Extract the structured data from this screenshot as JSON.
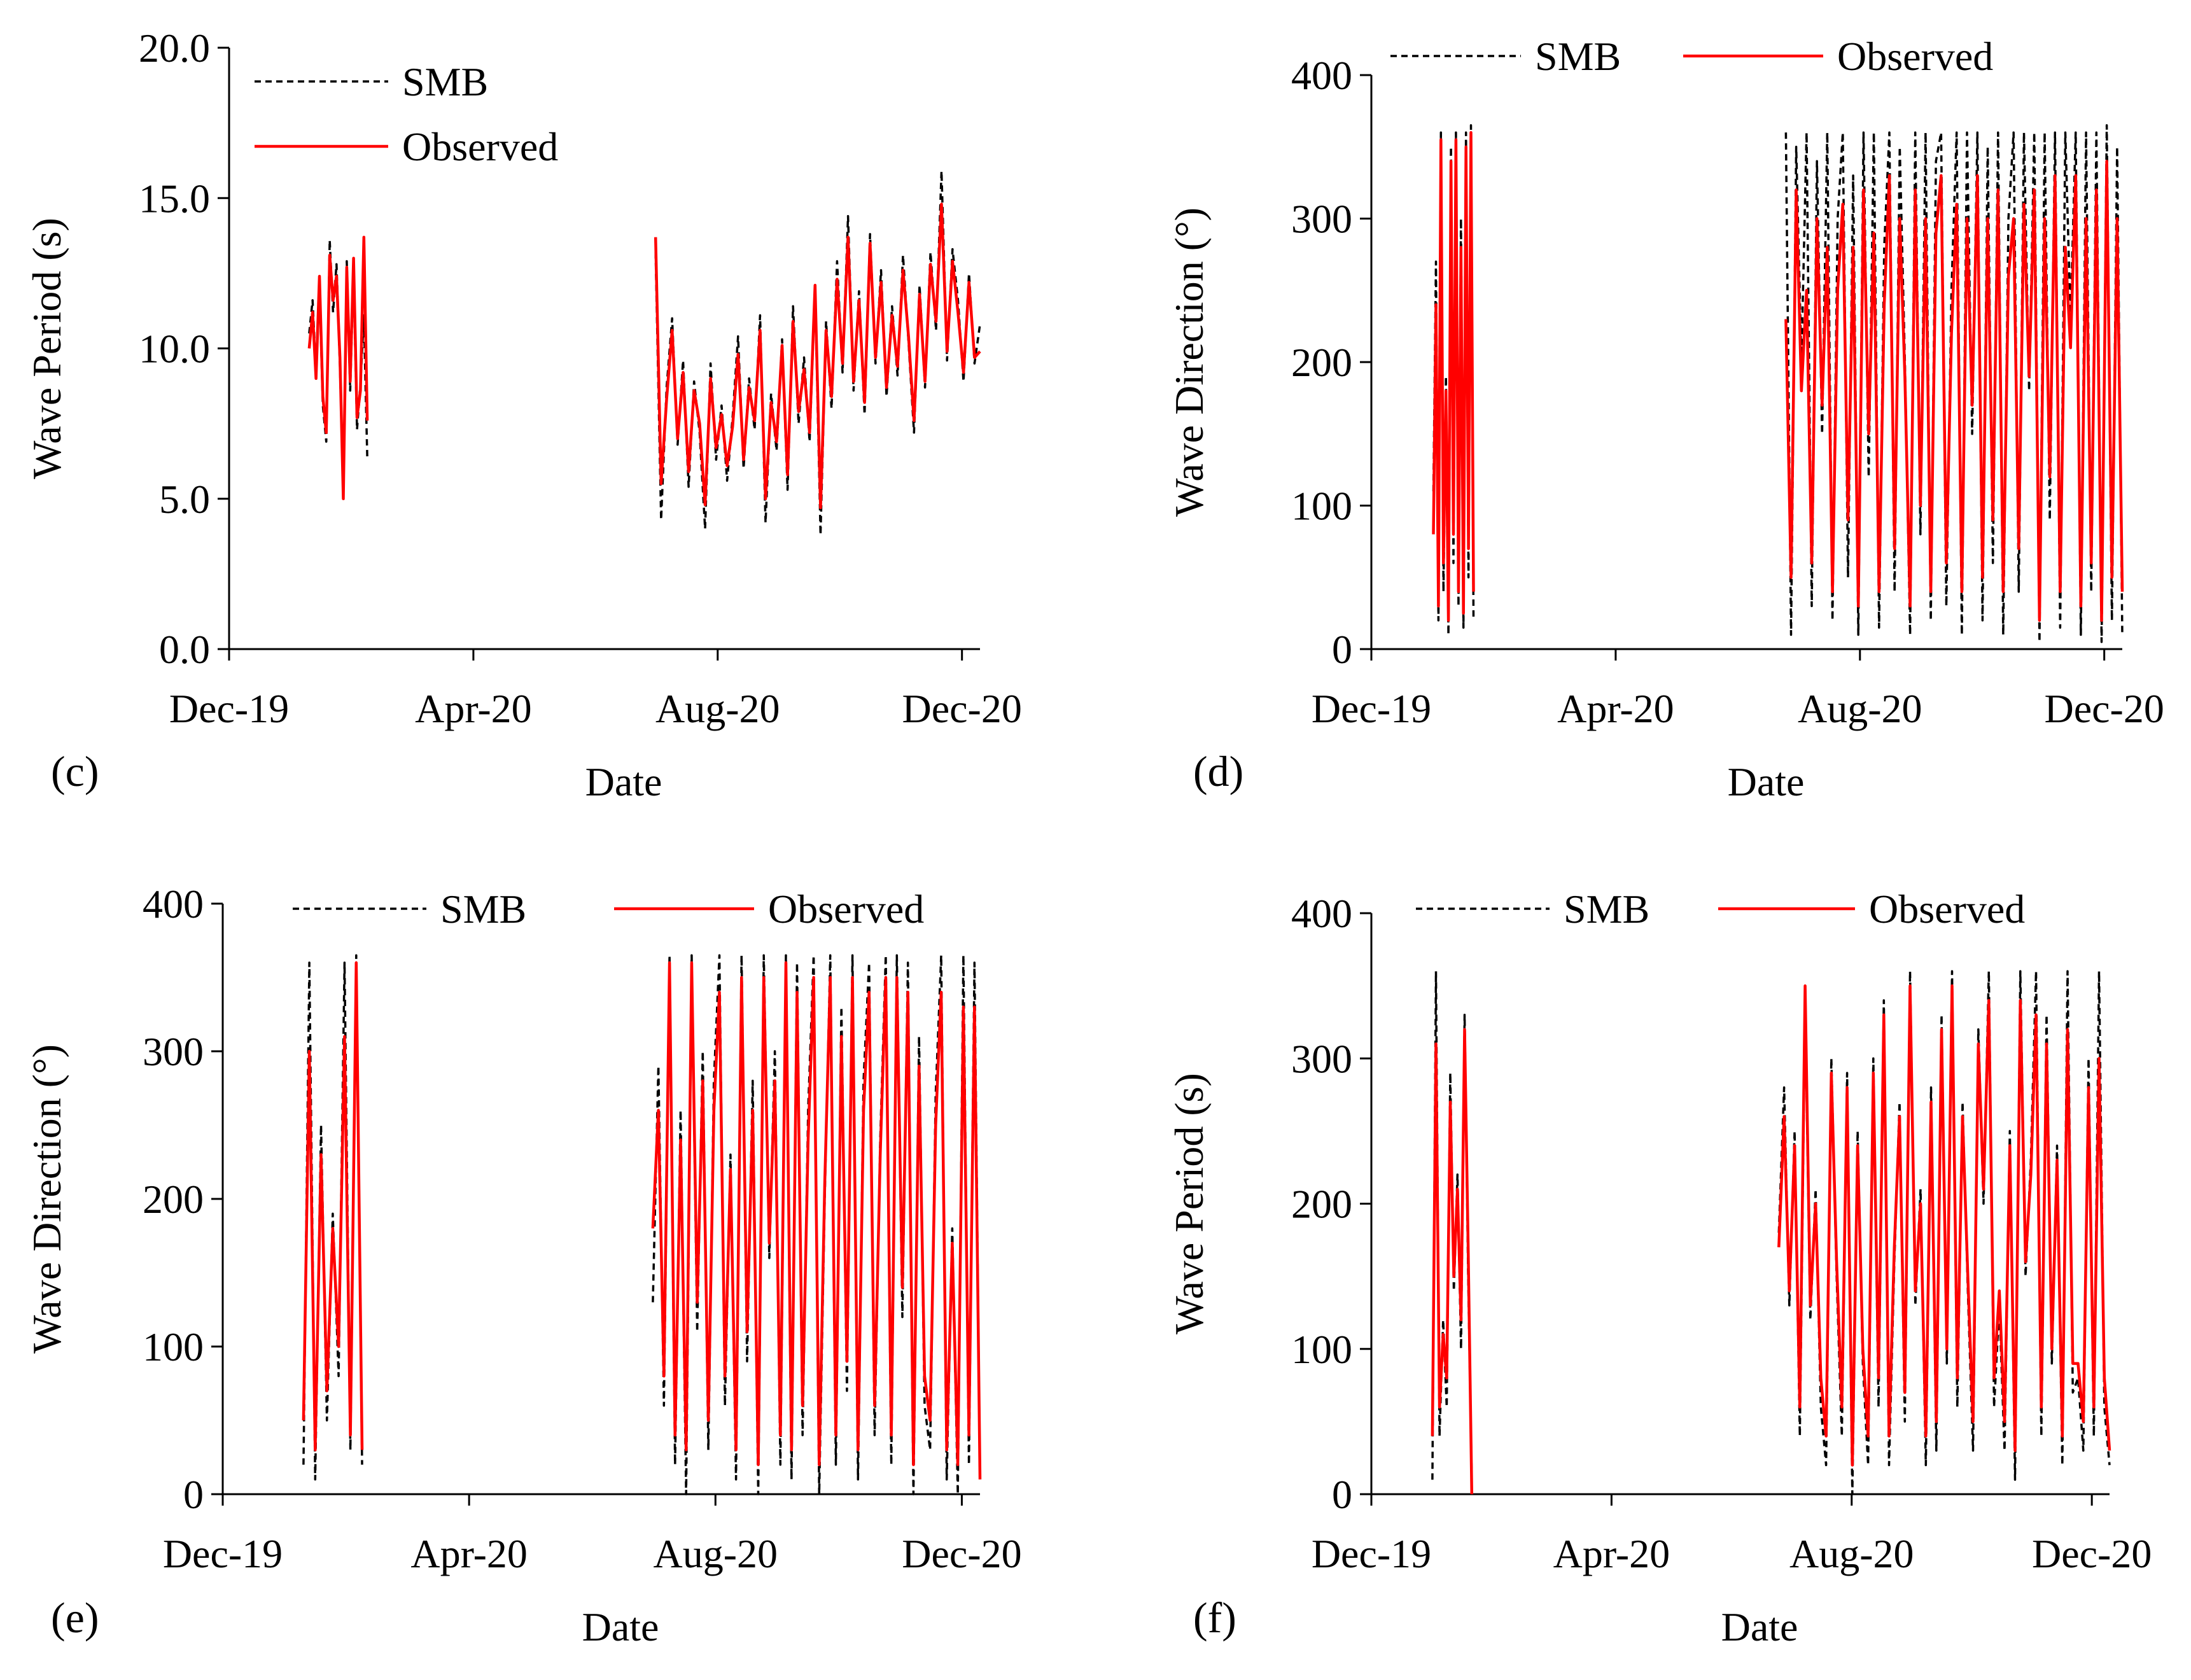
{
  "chart_data": [
    {
      "type": "line",
      "panel_label": "(c)",
      "xlabel": "Date",
      "ylabel": "Wave Period (s)",
      "x_tick_labels": [
        "Dec-19",
        "Apr-20",
        "Aug-20",
        "Dec-20"
      ],
      "xlim": [
        "2019-12-01",
        "2020-12-10"
      ],
      "ylim": [
        0,
        20
      ],
      "y_ticks": [
        "0.0",
        "5.0",
        "10.0",
        "15.0",
        "20.0"
      ],
      "y_tick_values": [
        0,
        5,
        10,
        15,
        20
      ],
      "grid": false,
      "legend_placement": "top-left",
      "series": [
        {
          "name": "SMB",
          "style": "dashed",
          "color": "#000000",
          "segments": [
            {
              "start": "2020-01-10",
              "end": "2020-02-08",
              "values": [
                10.5,
                11.6,
                9.2,
                12.1,
                8.1,
                6.9,
                13.6,
                11.2,
                12.8,
                9.4,
                5.1,
                12.9,
                8.6,
                12.6,
                7.3,
                8.8,
                11.1,
                6.4
              ]
            },
            {
              "start": "2020-07-01",
              "end": "2020-12-10",
              "values": [
                13.2,
                4.3,
                8.7,
                11.0,
                6.8,
                9.6,
                5.4,
                8.9,
                7.2,
                4.0,
                9.5,
                6.3,
                8.1,
                5.6,
                7.7,
                10.4,
                6.0,
                9.0,
                7.3,
                11.1,
                4.2,
                8.5,
                6.6,
                10.3,
                5.3,
                11.4,
                7.5,
                9.7,
                6.9,
                12.0,
                3.8,
                10.9,
                8.0,
                12.9,
                9.2,
                14.4,
                8.6,
                11.9,
                7.8,
                13.8,
                9.5,
                12.6,
                8.4,
                11.4,
                9.1,
                13.1,
                10.2,
                7.2,
                12.1,
                8.7,
                13.2,
                10.6,
                15.9,
                9.6,
                13.3,
                11.6,
                8.9,
                12.5,
                9.5,
                10.8
              ]
            }
          ]
        },
        {
          "name": "Observed",
          "style": "solid",
          "color": "#ff0000",
          "segments": [
            {
              "start": "2020-01-10",
              "end": "2020-02-08",
              "values": [
                10.0,
                11.2,
                9.0,
                12.4,
                8.4,
                7.2,
                13.1,
                11.6,
                12.4,
                9.7,
                5.0,
                12.7,
                8.9,
                13.0,
                7.7,
                8.6,
                13.7,
                7.6
              ]
            },
            {
              "start": "2020-07-01",
              "end": "2020-12-10",
              "values": [
                13.7,
                5.5,
                8.3,
                10.6,
                7.0,
                9.2,
                5.9,
                8.6,
                7.5,
                4.8,
                9.0,
                6.7,
                7.8,
                6.1,
                7.4,
                9.8,
                6.3,
                8.7,
                7.6,
                10.6,
                5.0,
                8.2,
                6.9,
                10.1,
                5.8,
                10.9,
                7.9,
                9.3,
                7.2,
                12.1,
                4.7,
                10.6,
                8.4,
                12.3,
                9.5,
                13.7,
                8.9,
                11.6,
                8.2,
                13.5,
                9.7,
                12.2,
                8.7,
                11.1,
                9.4,
                12.6,
                10.4,
                7.6,
                11.8,
                8.9,
                12.8,
                10.9,
                14.8,
                9.9,
                12.9,
                11.2,
                9.2,
                12.2,
                9.7,
                9.9
              ]
            }
          ]
        }
      ]
    },
    {
      "type": "line",
      "panel_label": "(d)",
      "xlabel": "Date",
      "ylabel": "Wave Direction (°)",
      "x_tick_labels": [
        "Dec-19",
        "Apr-20",
        "Aug-20",
        "Dec-20"
      ],
      "xlim": [
        "2019-12-01",
        "2020-12-10"
      ],
      "ylim": [
        0,
        400
      ],
      "y_ticks": [
        "0",
        "100",
        "200",
        "300",
        "400"
      ],
      "y_tick_values": [
        0,
        100,
        200,
        300,
        400
      ],
      "grid": false,
      "legend_placement": "top",
      "series": [
        {
          "name": "SMB",
          "style": "dashed",
          "color": "#000000",
          "segments": [
            {
              "start": "2020-01-01",
              "end": "2020-01-21",
              "values": [
                110,
                270,
                20,
                360,
                40,
                190,
                10,
                350,
                60,
                360,
                30,
                300,
                15,
                360,
                50,
                365,
                20
              ]
            },
            {
              "start": "2020-06-25",
              "end": "2020-12-10",
              "values": [
                360,
                10,
                350,
                200,
                360,
                30,
                340,
                150,
                360,
                20,
                300,
                360,
                50,
                330,
                10,
                360,
                120,
                360,
                15,
                280,
                360,
                40,
                350,
                200,
                10,
                360,
                80,
                360,
                20,
                340,
                360,
                30,
                250,
                360,
                10,
                360,
                150,
                360,
                20,
                350,
                60,
                360,
                10,
                300,
                360,
                40,
                360,
                180,
                360,
                5,
                360,
                90,
                360,
                15,
                360,
                230,
                360,
                10,
                360,
                40,
                360,
                5,
                365,
                20,
                350,
                10
              ]
            }
          ]
        },
        {
          "name": "Observed",
          "style": "solid",
          "color": "#ff0000",
          "segments": [
            {
              "start": "2020-01-01",
              "end": "2020-01-21",
              "values": [
                80,
                240,
                30,
                355,
                60,
                180,
                20,
                340,
                80,
                355,
                40,
                280,
                25,
                350,
                70,
                360,
                40
              ]
            },
            {
              "start": "2020-06-25",
              "end": "2020-12-10",
              "values": [
                230,
                50,
                320,
                180,
                250,
                60,
                300,
                170,
                280,
                40,
                250,
                310,
                90,
                280,
                30,
                320,
                150,
                290,
                40,
                240,
                330,
                70,
                300,
                190,
                30,
                320,
                100,
                300,
                40,
                290,
                330,
                60,
                220,
                310,
                40,
                300,
                170,
                330,
                50,
                300,
                90,
                320,
                40,
                260,
                300,
                70,
                310,
                190,
                320,
                20,
                300,
                120,
                330,
                40,
                280,
                210,
                330,
                30,
                300,
                60,
                320,
                20,
                340,
                50,
                300,
                40
              ]
            }
          ]
        }
      ]
    },
    {
      "type": "line",
      "panel_label": "(e)",
      "xlabel": "Date",
      "ylabel": "Wave Direction (°)",
      "x_tick_labels": [
        "Dec-19",
        "Apr-20",
        "Aug-20",
        "Dec-20"
      ],
      "xlim": [
        "2019-12-01",
        "2020-12-10"
      ],
      "ylim": [
        0,
        400
      ],
      "y_ticks": [
        "0",
        "100",
        "200",
        "300",
        "400"
      ],
      "y_tick_values": [
        0,
        100,
        200,
        300,
        400
      ],
      "grid": false,
      "legend_placement": "top",
      "series": [
        {
          "name": "SMB",
          "style": "dashed",
          "color": "#000000",
          "segments": [
            {
              "start": "2020-01-10",
              "end": "2020-02-08",
              "values": [
                20,
                360,
                10,
                250,
                50,
                190,
                80,
                360,
                30,
                365,
                20
              ]
            },
            {
              "start": "2020-07-01",
              "end": "2020-12-10",
              "values": [
                130,
                290,
                60,
                365,
                20,
                260,
                0,
                365,
                110,
                300,
                30,
                280,
                365,
                60,
                230,
                10,
                365,
                90,
                280,
                0,
                365,
                160,
                300,
                20,
                365,
                10,
                360,
                40,
                260,
                365,
                0,
                200,
                365,
                20,
                330,
                70,
                365,
                10,
                280,
                360,
                40,
                240,
                365,
                20,
                365,
                120,
                360,
                0,
                310,
                60,
                30,
                270,
                365,
                10,
                180,
                0,
                365,
                20,
                360,
                10
              ]
            }
          ]
        },
        {
          "name": "Observed",
          "style": "solid",
          "color": "#ff0000",
          "segments": [
            {
              "start": "2020-01-10",
              "end": "2020-02-08",
              "values": [
                50,
                300,
                30,
                230,
                70,
                180,
                100,
                310,
                40,
                360,
                30
              ]
            },
            {
              "start": "2020-07-01",
              "end": "2020-12-10",
              "values": [
                180,
                260,
                80,
                360,
                40,
                240,
                30,
                360,
                130,
                280,
                50,
                260,
                340,
                80,
                220,
                30,
                350,
                110,
                260,
                20,
                350,
                170,
                280,
                40,
                360,
                30,
                340,
                60,
                240,
                350,
                20,
                210,
                350,
                40,
                310,
                90,
                350,
                30,
                260,
                340,
                60,
                230,
                350,
                40,
                350,
                140,
                340,
                20,
                290,
                80,
                50,
                250,
                340,
                30,
                170,
                20,
                330,
                40,
                330,
                10
              ]
            }
          ]
        }
      ]
    },
    {
      "type": "line",
      "panel_label": "(f)",
      "xlabel": "Date",
      "ylabel": "Wave Period (s)",
      "x_tick_labels": [
        "Dec-19",
        "Apr-20",
        "Aug-20",
        "Dec-20"
      ],
      "xlim": [
        "2019-12-01",
        "2020-12-10"
      ],
      "ylim": [
        0,
        400
      ],
      "y_ticks": [
        "0",
        "100",
        "200",
        "300",
        "400"
      ],
      "y_tick_values": [
        0,
        100,
        200,
        300,
        400
      ],
      "grid": false,
      "legend_placement": "top",
      "series": [
        {
          "name": "SMB",
          "style": "dashed",
          "color": "#000000",
          "segments": [
            {
              "start": "2020-01-01",
              "end": "2020-01-21",
              "values": [
                10,
                360,
                40,
                120,
                60,
                290,
                140,
                220,
                100,
                330,
                150,
                10
              ]
            },
            {
              "start": "2020-06-25",
              "end": "2020-12-10",
              "values": [
                180,
                280,
                130,
                250,
                40,
                340,
                120,
                210,
                60,
                20,
                300,
                150,
                40,
                290,
                0,
                250,
                90,
                20,
                300,
                60,
                340,
                20,
                160,
                270,
                50,
                360,
                130,
                210,
                20,
                280,
                30,
                330,
                90,
                360,
                60,
                270,
                140,
                30,
                320,
                200,
                360,
                60,
                130,
                30,
                250,
                10,
                360,
                150,
                230,
                360,
                40,
                330,
                90,
                240,
                20,
                360,
                70,
                80,
                30,
                300,
                40,
                360,
                60,
                20
              ]
            }
          ]
        },
        {
          "name": "Observed",
          "style": "solid",
          "color": "#ff0000",
          "segments": [
            {
              "start": "2020-01-01",
              "end": "2020-01-21",
              "values": [
                40,
                310,
                60,
                110,
                80,
                270,
                150,
                210,
                120,
                320,
                170,
                0
              ]
            },
            {
              "start": "2020-06-25",
              "end": "2020-12-10",
              "values": [
                170,
                260,
                140,
                240,
                60,
                350,
                130,
                200,
                80,
                40,
                290,
                160,
                60,
                280,
                20,
                240,
                100,
                40,
                290,
                80,
                330,
                40,
                170,
                260,
                70,
                350,
                140,
                200,
                40,
                270,
                50,
                320,
                100,
                350,
                80,
                260,
                150,
                50,
                310,
                210,
                340,
                80,
                140,
                50,
                240,
                30,
                340,
                160,
                220,
                330,
                60,
                310,
                100,
                230,
                40,
                320,
                90,
                90,
                50,
                280,
                60,
                300,
                80,
                30
              ]
            }
          ]
        }
      ]
    }
  ]
}
